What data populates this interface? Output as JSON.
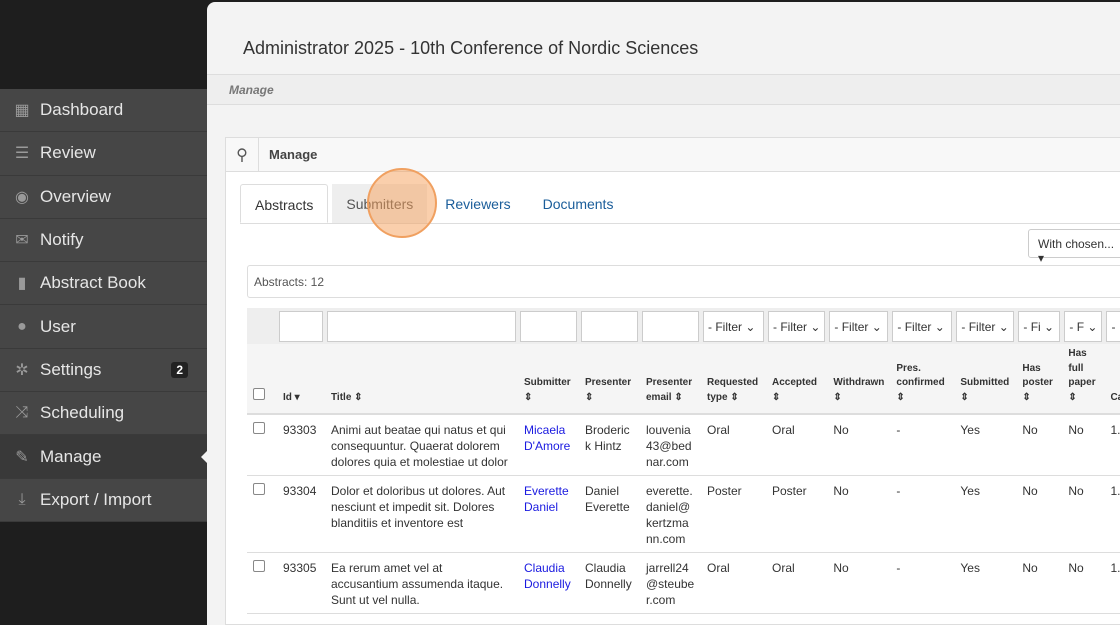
{
  "sidebar": {
    "items": [
      {
        "label": "Dashboard",
        "icon": "grid-icon"
      },
      {
        "label": "Review",
        "icon": "list-icon"
      },
      {
        "label": "Overview",
        "icon": "eye-icon"
      },
      {
        "label": "Notify",
        "icon": "envelope-icon"
      },
      {
        "label": "Abstract Book",
        "icon": "book-icon"
      },
      {
        "label": "User",
        "icon": "user-icon"
      },
      {
        "label": "Settings",
        "icon": "gear-icon",
        "badge": "2"
      },
      {
        "label": "Scheduling",
        "icon": "shuffle-icon"
      },
      {
        "label": "Manage",
        "icon": "wrench-icon",
        "active": true
      },
      {
        "label": "Export / Import",
        "icon": "download-icon"
      }
    ]
  },
  "header": {
    "title": "Administrator 2025 - 10th Conference of Nordic Sciences",
    "breadcrumb": "Manage"
  },
  "panel": {
    "title": "Manage",
    "tabs": [
      "Abstracts",
      "Submitters",
      "Reviewers",
      "Documents"
    ],
    "with_chosen": "With chosen...",
    "count": "Abstracts: 12"
  },
  "filters": [
    "- Filter",
    "- Filter",
    "- Filter",
    "- Filter",
    "- Filter",
    "- Fi",
    "- F",
    "-"
  ],
  "columns": [
    "Id ▾",
    "Title ⇕",
    "Submitter ⇕",
    "Presenter ⇕",
    "Presenter email ⇕",
    "Requested type ⇕",
    "Accepted ⇕",
    "Withdrawn ⇕",
    "Pres. confirmed ⇕",
    "Submitted ⇕",
    "Has poster ⇕",
    "Has full paper ⇕",
    "Ca"
  ],
  "rows": [
    {
      "id": "93303",
      "title": "Animi aut beatae qui natus et qui consequuntur. Quaerat dolorem dolores quia et molestiae ut dolor",
      "submitter": "Micaela D'Amore",
      "presenter": "Broderick Hintz",
      "email": "louvenia43@bednar.com",
      "requested": "Oral",
      "accepted": "Oral",
      "withdrawn": "No",
      "confirmed": "-",
      "submitted": "Yes",
      "poster": "No",
      "paper": "No",
      "ca": "1."
    },
    {
      "id": "93304",
      "title": "Dolor et doloribus ut dolores. Aut nesciunt et impedit sit. Dolores blanditiis et inventore est",
      "submitter": "Everette Daniel",
      "presenter": "Daniel Everette",
      "email": "everette.daniel@kertzmann.com",
      "requested": "Poster",
      "accepted": "Poster",
      "withdrawn": "No",
      "confirmed": "-",
      "submitted": "Yes",
      "poster": "No",
      "paper": "No",
      "ca": "1."
    },
    {
      "id": "93305",
      "title": "Ea rerum amet vel at accusantium assumenda itaque. Sunt ut vel nulla.",
      "submitter": "Claudia Donnelly",
      "presenter": "Claudia Donnelly",
      "email": "jarrell24@steuber.com",
      "requested": "Oral",
      "accepted": "Oral",
      "withdrawn": "No",
      "confirmed": "-",
      "submitted": "Yes",
      "poster": "No",
      "paper": "No",
      "ca": "1."
    }
  ]
}
